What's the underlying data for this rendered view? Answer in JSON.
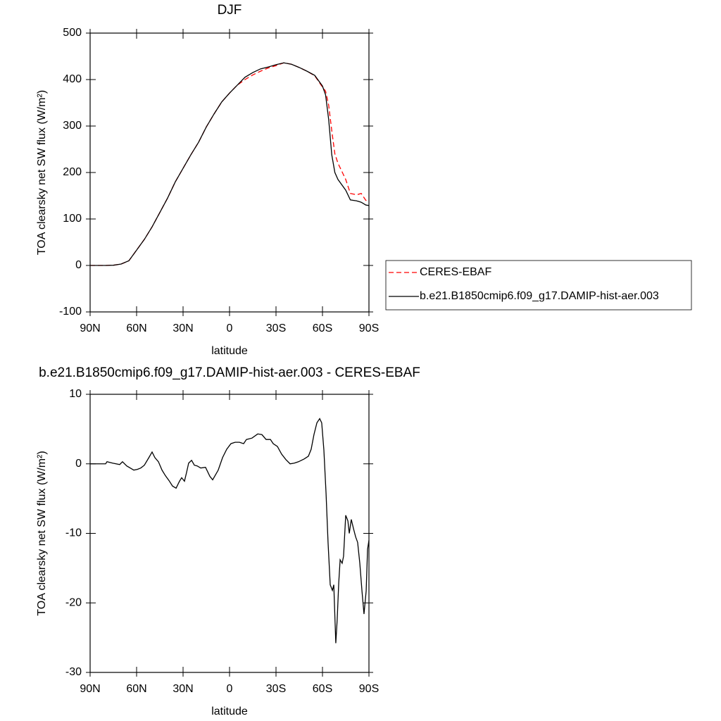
{
  "chart_data": [
    {
      "type": "line",
      "title": "DJF",
      "xlabel": "latitude",
      "ylabel": "TOA clearsky net SW flux (W/m²)",
      "x": [
        90,
        80,
        75,
        70,
        65,
        60,
        55,
        50,
        45,
        40,
        35,
        30,
        25,
        20,
        15,
        10,
        5,
        0,
        -5,
        -10,
        -15,
        -20,
        -25,
        -30,
        -35,
        -40,
        -45,
        -50,
        -55,
        -60,
        -62,
        -64,
        -66,
        -68,
        -70,
        -75,
        -78,
        -82,
        -85,
        -88,
        -90
      ],
      "series": [
        {
          "name": "CERES-EBAF",
          "color": "#ff0000",
          "dashed": true,
          "values": [
            0,
            0,
            0.5,
            3,
            10,
            33,
            56,
            83,
            114,
            145,
            180,
            209,
            238,
            265,
            298,
            326,
            352,
            371,
            388,
            400,
            410,
            418,
            425,
            430,
            436,
            433,
            426,
            418,
            408,
            384,
            375,
            345,
            290,
            240,
            220,
            185,
            155,
            152,
            155,
            140,
            140
          ]
        },
        {
          "name": "b.e21.B1850cmip6.f09_g17.DAMIP-hist-aer.003",
          "color": "#000000",
          "dashed": false,
          "values": [
            0,
            0,
            0.5,
            3,
            10,
            33,
            56,
            83,
            114,
            145,
            180,
            209,
            238,
            265,
            298,
            326,
            352,
            371,
            388,
            405,
            415,
            423,
            427,
            432,
            436,
            433,
            426,
            418,
            409,
            386,
            367,
            314,
            238,
            200,
            185,
            162,
            141,
            139,
            136,
            130,
            129
          ]
        }
      ],
      "xlim": [
        90,
        -90
      ],
      "xticks": [
        {
          "value": 90,
          "label": "90N"
        },
        {
          "value": 60,
          "label": "60N"
        },
        {
          "value": 30,
          "label": "30N"
        },
        0,
        {
          "value": -30,
          "label": "30S"
        },
        {
          "value": -60,
          "label": "60S"
        },
        {
          "value": -90,
          "label": "90S"
        }
      ],
      "ylim": [
        -100,
        500
      ],
      "yticks": [
        -100,
        0,
        100,
        200,
        300,
        400,
        500
      ],
      "legend": "right"
    },
    {
      "type": "line",
      "title": "b.e21.B1850cmip6.f09_g17.DAMIP-hist-aer.003 - CERES-EBAF",
      "xlabel": "latitude",
      "ylabel": "TOA clearsky net SW flux (W/m²)",
      "x": [
        90,
        80,
        79.1,
        75.5,
        70.9,
        69.1,
        66.4,
        64.1,
        61.8,
        59.5,
        57.3,
        55,
        51.8,
        50,
        48.2,
        45.9,
        43.6,
        41.4,
        39.1,
        36.8,
        34.5,
        32.3,
        30.9,
        29.1,
        27.7,
        26.4,
        24.5,
        22.7,
        20.9,
        18.6,
        15.5,
        12.7,
        10.9,
        9.1,
        7.3,
        4.5,
        1.8,
        -0.9,
        -3.6,
        -6.4,
        -9.1,
        -10.9,
        -14.5,
        -18.2,
        -20.9,
        -23.6,
        -26.4,
        -28.2,
        -30.9,
        -33.6,
        -36.4,
        -39.1,
        -41.8,
        -44.5,
        -48.2,
        -50.9,
        -52.7,
        -54.5,
        -56.4,
        -58.2,
        -59.5,
        -60.9,
        -62.3,
        -63.6,
        -65,
        -66.4,
        -67.3,
        -68.6,
        -69.5,
        -70.5,
        -71.4,
        -72.7,
        -73.6,
        -75,
        -76.4,
        -77.3,
        -78.6,
        -80,
        -81.4,
        -82.7,
        -84.1,
        -85.5,
        -86.8,
        -88.2,
        -89.1,
        -90
      ],
      "color": "#000000",
      "values": [
        0,
        0,
        0.3,
        0.1,
        -0.1,
        0.3,
        -0.3,
        -0.6,
        -0.9,
        -0.8,
        -0.6,
        -0.2,
        1,
        1.7,
        0.9,
        0.3,
        -0.9,
        -1.7,
        -2.4,
        -3.2,
        -3.5,
        -2.5,
        -2,
        -2.5,
        -1.2,
        0.1,
        0.5,
        -0.2,
        -0.3,
        -0.6,
        -0.5,
        -1.8,
        -2.3,
        -1.6,
        -0.9,
        0.9,
        2.1,
        2.9,
        3.1,
        3.1,
        2.9,
        3.5,
        3.7,
        4.3,
        4.2,
        3.5,
        3.5,
        2.9,
        2.5,
        1.4,
        0.6,
        0,
        0.1,
        0.3,
        0.7,
        1.1,
        2.1,
        4.2,
        5.9,
        6.5,
        5.9,
        2,
        -4.2,
        -11.3,
        -17.4,
        -18.2,
        -17.4,
        -25.8,
        -22.4,
        -17.1,
        -13.8,
        -14.3,
        -13.3,
        -7.4,
        -8.2,
        -10,
        -8,
        -9.3,
        -10.5,
        -11.3,
        -14.3,
        -18.3,
        -21.6,
        -18.3,
        -12.3,
        -11
      ],
      "xlim": [
        90,
        -90
      ],
      "xticks": [
        {
          "value": 90,
          "label": "90N"
        },
        {
          "value": 60,
          "label": "60N"
        },
        {
          "value": 30,
          "label": "30N"
        },
        0,
        {
          "value": -30,
          "label": "30S"
        },
        {
          "value": -60,
          "label": "60S"
        },
        {
          "value": -90,
          "label": "90S"
        }
      ],
      "ylim": [
        -30,
        10
      ],
      "yticks": [
        -30,
        -20,
        -10,
        0,
        10
      ]
    }
  ]
}
